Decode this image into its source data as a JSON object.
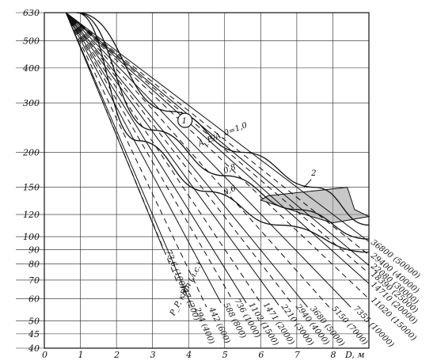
{
  "chart_data": {
    "type": "line",
    "title": "",
    "xlabel": "D, м",
    "ylabel": "",
    "xlim": [
      0,
      9
    ],
    "ylim": [
      40,
      630
    ],
    "y_scale": "log",
    "x_ticks": [
      "0",
      "1",
      "2",
      "3",
      "4",
      "5",
      "6",
      "7",
      "8"
    ],
    "y_ticks": [
      {
        "value": 630,
        "label": "630"
      },
      {
        "value": 500,
        "label": "500"
      },
      {
        "value": 400,
        "label": "400"
      },
      {
        "value": 300,
        "label": "300"
      },
      {
        "value": 200,
        "label": "200"
      },
      {
        "value": 150,
        "label": "150"
      },
      {
        "value": 120,
        "label": "120"
      },
      {
        "value": 100,
        "label": "100"
      },
      {
        "value": 90,
        "label": "90"
      },
      {
        "value": 80,
        "label": "80"
      },
      {
        "value": 70,
        "label": "70"
      },
      {
        "value": 60,
        "label": "60"
      },
      {
        "value": 50,
        "label": "50"
      },
      {
        "value": 45,
        "label": "45"
      },
      {
        "value": 40,
        "label": "40"
      }
    ],
    "power_label": "P_P, кВт (л.с.)",
    "power_series": [
      {
        "name": "73,6 (100)",
        "x": [
          0.6,
          3.3
        ],
        "y": [
          630,
          90
        ],
        "dash": false
      },
      {
        "name": "147 (200)",
        "x": [
          0.6,
          3.7
        ],
        "y": [
          630,
          68
        ],
        "dash": true
      },
      {
        "name": "294 (400)",
        "x": [
          0.6,
          4.1
        ],
        "y": [
          630,
          56
        ],
        "dash": false
      },
      {
        "name": "442 (600)",
        "x": [
          0.6,
          4.5
        ],
        "y": [
          630,
          56
        ],
        "dash": true
      },
      {
        "name": "588 (800)",
        "x": [
          0.6,
          4.9
        ],
        "y": [
          630,
          58
        ],
        "dash": false
      },
      {
        "name": "736 (1000)",
        "x": [
          0.6,
          5.2
        ],
        "y": [
          630,
          60
        ],
        "dash": true
      },
      {
        "name": "1102 (1500)",
        "x": [
          0.6,
          5.6
        ],
        "y": [
          630,
          58
        ],
        "dash": false
      },
      {
        "name": "1471 (2000)",
        "x": [
          0.6,
          6.0
        ],
        "y": [
          630,
          58
        ],
        "dash": true
      },
      {
        "name": "2210 (3000)",
        "x": [
          0.6,
          6.5
        ],
        "y": [
          630,
          57
        ],
        "dash": false
      },
      {
        "name": "2940 (4000)",
        "x": [
          0.6,
          6.9
        ],
        "y": [
          630,
          57
        ],
        "dash": true
      },
      {
        "name": "3680 (5000)",
        "x": [
          0.6,
          7.3
        ],
        "y": [
          630,
          56
        ],
        "dash": false
      },
      {
        "name": "5150 (7000)",
        "x": [
          0.6,
          7.9
        ],
        "y": [
          630,
          56
        ],
        "dash": true
      },
      {
        "name": "7355 (10000)",
        "x": [
          0.6,
          8.5
        ],
        "y": [
          630,
          56
        ],
        "dash": false
      },
      {
        "name": "11020 (15000)",
        "x": [
          0.6,
          9.0
        ],
        "y": [
          630,
          60
        ],
        "dash": true
      },
      {
        "name": "14710 (20000)",
        "x": [
          0.6,
          9.0
        ],
        "y": [
          630,
          68
        ],
        "dash": false
      },
      {
        "name": "18390 (25000)",
        "x": [
          0.6,
          9.0
        ],
        "y": [
          630,
          74
        ],
        "dash": true
      },
      {
        "name": "22080 (30000)",
        "x": [
          0.6,
          9.0
        ],
        "y": [
          630,
          79
        ],
        "dash": false
      },
      {
        "name": "29400 (40000)",
        "x": [
          0.6,
          9.0
        ],
        "y": [
          630,
          86
        ],
        "dash": true
      },
      {
        "name": "36800 (50000)",
        "x": [
          0.6,
          9.0
        ],
        "y": [
          630,
          96
        ],
        "dash": false
      }
    ],
    "ratio_curves": [
      {
        "name": "A_E/A_0=1,0",
        "x": [
          0.9,
          3.5,
          5.5,
          7.5,
          9.0
        ],
        "y": [
          630,
          280,
          200,
          150,
          110
        ]
      },
      {
        "name": "0,8",
        "x": [
          0.9,
          3.0,
          5.0,
          7.0,
          9.0
        ],
        "y": [
          630,
          240,
          165,
          125,
          98
        ]
      },
      {
        "name": "0,6",
        "x": [
          0.9,
          2.6,
          4.5,
          6.5,
          9.0
        ],
        "y": [
          630,
          220,
          145,
          110,
          88
        ]
      }
    ],
    "annotations": [
      "1",
      "2"
    ],
    "zone_2": {
      "x": [
        6.2,
        8.4,
        8.6,
        9.0,
        8.0,
        7.4,
        6.0
      ],
      "y": [
        140,
        150,
        125,
        118,
        112,
        118,
        135
      ]
    }
  }
}
